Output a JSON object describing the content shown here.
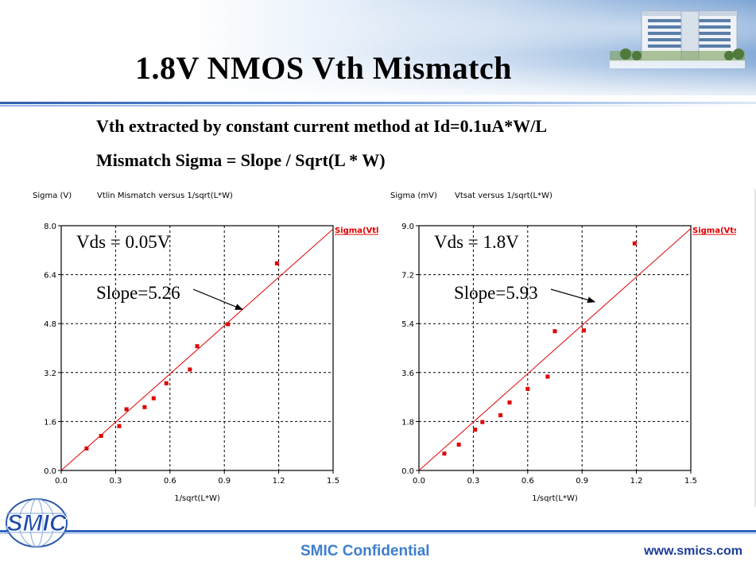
{
  "slide": {
    "title": "1.8V NMOS Vth Mismatch",
    "subtitle_1": "Vth extracted by constant current method at Id=0.1uA*W/L",
    "subtitle_2": "Mismatch Sigma = Slope / Sqrt(L * W)"
  },
  "footer": {
    "logo_text": "SMIC",
    "confidential": "SMIC Confidential",
    "website": "www.smics.com"
  },
  "colors": {
    "accent_blue": "#2f64bf",
    "confidential_blue": "#3e7fcf",
    "data_red": "#e00000"
  },
  "chart_data": [
    {
      "type": "scatter",
      "y_axis_label": "Sigma (V)",
      "title": "Vtlin Mismatch versus 1/sqrt(L*W)",
      "xlabel": "1/sqrt(L*W)",
      "legend": "Sigma(Vtlini)",
      "condition": "Vds = 0.05V",
      "slope_label": "Slope=5.26",
      "xlim": [
        0.0,
        1.5
      ],
      "ylim": [
        0.0,
        8.0
      ],
      "x_ticks": [
        "0.0",
        "0.3",
        "0.6",
        "0.9",
        "1.2",
        "1.5"
      ],
      "y_ticks": [
        "0.0",
        "1.6",
        "3.2",
        "4.8",
        "6.4",
        "8.0"
      ],
      "x_tick_values": [
        0.0,
        0.3,
        0.6,
        0.9,
        1.2,
        1.5
      ],
      "y_tick_values": [
        0.0,
        1.6,
        3.2,
        4.8,
        6.4,
        8.0
      ],
      "points": [
        {
          "x": 0.14,
          "y": 0.72
        },
        {
          "x": 0.22,
          "y": 1.13
        },
        {
          "x": 0.32,
          "y": 1.45
        },
        {
          "x": 0.36,
          "y": 2.0
        },
        {
          "x": 0.46,
          "y": 2.07
        },
        {
          "x": 0.51,
          "y": 2.36
        },
        {
          "x": 0.58,
          "y": 2.85
        },
        {
          "x": 0.71,
          "y": 3.3
        },
        {
          "x": 0.75,
          "y": 4.06
        },
        {
          "x": 0.92,
          "y": 4.78
        },
        {
          "x": 1.19,
          "y": 6.77
        }
      ],
      "fit_line": {
        "slope": 5.26,
        "intercept": 0.0
      },
      "arrow_target": {
        "x": 1.0,
        "y": 5.26
      }
    },
    {
      "type": "scatter",
      "y_axis_label": "Sigma (mV)",
      "title": "Vtsat versus 1/sqrt(L*W)",
      "xlabel": "1/sqrt(L*W)",
      "legend": "Sigma(Vtsati)",
      "condition": "Vds = 1.8V",
      "slope_label": "Slope=5.93",
      "xlim": [
        0.0,
        1.5
      ],
      "ylim": [
        0.0,
        9.0
      ],
      "x_ticks": [
        "0.0",
        "0.3",
        "0.6",
        "0.9",
        "1.2",
        "1.5"
      ],
      "y_ticks": [
        "0.0",
        "1.8",
        "3.6",
        "5.4",
        "7.2",
        "9.0"
      ],
      "x_tick_values": [
        0.0,
        0.3,
        0.6,
        0.9,
        1.2,
        1.5
      ],
      "y_tick_values": [
        0.0,
        1.8,
        3.6,
        5.4,
        7.2,
        9.0
      ],
      "points": [
        {
          "x": 0.14,
          "y": 0.62
        },
        {
          "x": 0.22,
          "y": 0.95
        },
        {
          "x": 0.31,
          "y": 1.5
        },
        {
          "x": 0.35,
          "y": 1.78
        },
        {
          "x": 0.45,
          "y": 2.03
        },
        {
          "x": 0.5,
          "y": 2.5
        },
        {
          "x": 0.6,
          "y": 3.0
        },
        {
          "x": 0.71,
          "y": 3.45
        },
        {
          "x": 0.75,
          "y": 5.12
        },
        {
          "x": 0.91,
          "y": 5.15
        },
        {
          "x": 1.19,
          "y": 8.35
        }
      ],
      "fit_line": {
        "slope": 5.93,
        "intercept": 0.0
      },
      "arrow_target": {
        "x": 0.97,
        "y": 6.2
      }
    }
  ]
}
